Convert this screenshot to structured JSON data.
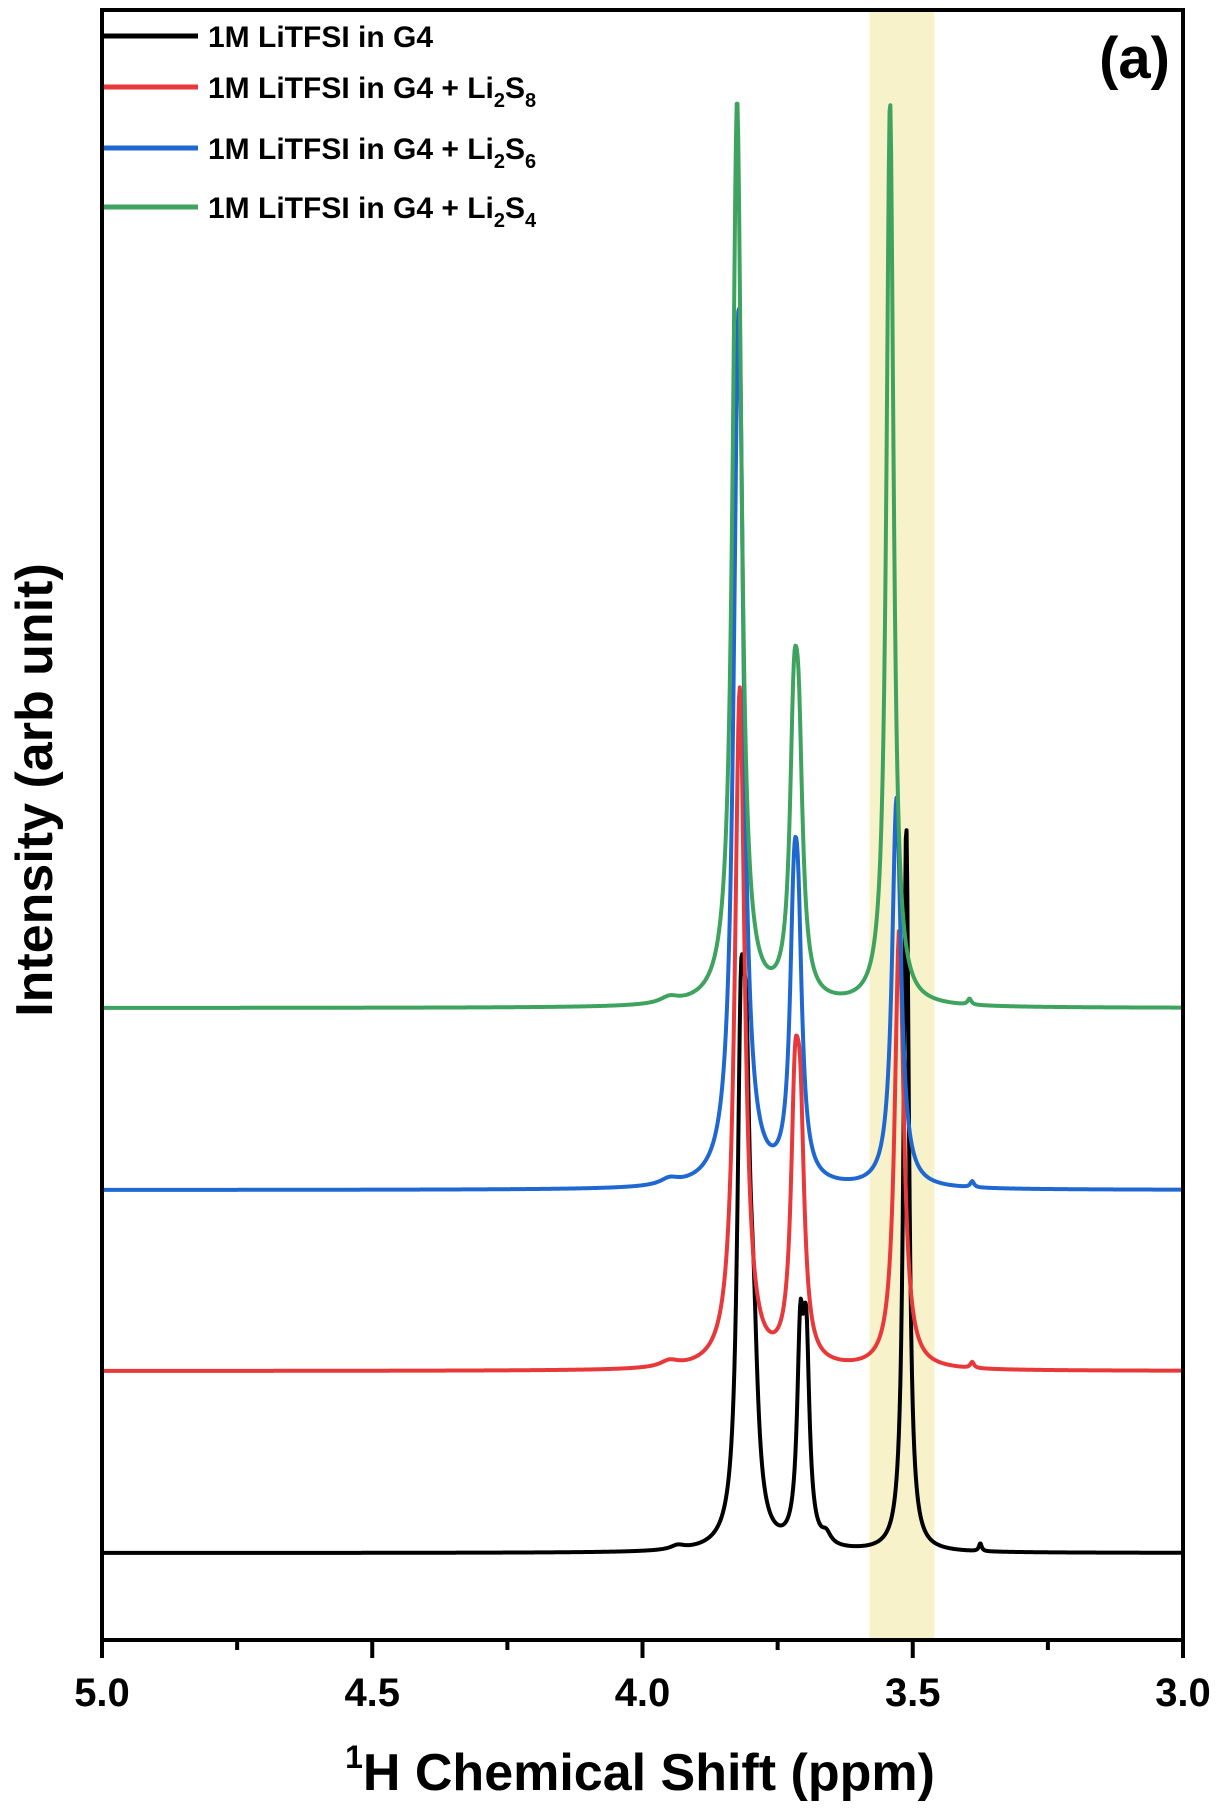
{
  "chart_data": {
    "type": "line",
    "panel_label": "(a)",
    "xlabel": {
      "superscript": "1",
      "text": "H Chemical Shift (ppm)"
    },
    "ylabel": "Intensity (arb unit)",
    "xlim": [
      5.0,
      3.0
    ],
    "x_reversed": true,
    "x_ticks": [
      5.0,
      4.5,
      4.0,
      3.5,
      3.0
    ],
    "x_tick_labels": [
      "5.0",
      "4.5",
      "4.0",
      "3.5",
      "3.0"
    ],
    "y_ticks_shown": false,
    "highlight_band": {
      "x": [
        3.58,
        3.46
      ],
      "color": "#f7f2c9"
    },
    "legend_placement": "top-left",
    "series": [
      {
        "name": "1M LiTFSI in G4",
        "legend": {
          "main": "1M LiTFSI in G4",
          "sub1": "",
          "mid": "",
          "sub2": ""
        },
        "color": "#000000",
        "offset": 0,
        "peaks": [
          {
            "x": 3.818,
            "height": 428,
            "width": 0.008
          },
          {
            "x": 3.808,
            "height": 330,
            "width": 0.008
          },
          {
            "x": 3.795,
            "height": 160,
            "width": 0.01
          },
          {
            "x": 3.708,
            "height": 190,
            "width": 0.007
          },
          {
            "x": 3.697,
            "height": 185,
            "width": 0.007
          },
          {
            "x": 3.512,
            "height": 728,
            "width": 0.006
          },
          {
            "x": 3.935,
            "height": 4,
            "width": 0.015
          },
          {
            "x": 3.66,
            "height": 10,
            "width": 0.01
          },
          {
            "x": 3.375,
            "height": 8,
            "width": 0.003
          }
        ]
      },
      {
        "name": "1M LiTFSI in G4 + Li2S8",
        "legend": {
          "main": "1M LiTFSI in G4 + Li",
          "sub1": "2",
          "mid": "S",
          "sub2": "8"
        },
        "color": "#e8383a",
        "offset": 182,
        "peaks": [
          {
            "x": 3.82,
            "height": 680,
            "width": 0.011
          },
          {
            "x": 3.718,
            "height": 225,
            "width": 0.009
          },
          {
            "x": 3.708,
            "height": 200,
            "width": 0.009
          },
          {
            "x": 3.525,
            "height": 440,
            "width": 0.01
          },
          {
            "x": 3.95,
            "height": 6,
            "width": 0.02
          },
          {
            "x": 3.39,
            "height": 6,
            "width": 0.004
          }
        ]
      },
      {
        "name": "1M LiTFSI in G4 + Li2S6",
        "legend": {
          "main": "1M LiTFSI in G4 + Li",
          "sub1": "2",
          "mid": "S",
          "sub2": "6"
        },
        "color": "#1f68d2",
        "offset": 363,
        "peaks": [
          {
            "x": 3.822,
            "height": 880,
            "width": 0.011
          },
          {
            "x": 3.72,
            "height": 215,
            "width": 0.009
          },
          {
            "x": 3.712,
            "height": 195,
            "width": 0.009
          },
          {
            "x": 3.53,
            "height": 390,
            "width": 0.01
          },
          {
            "x": 3.95,
            "height": 6,
            "width": 0.02
          },
          {
            "x": 3.39,
            "height": 6,
            "width": 0.004
          }
        ]
      },
      {
        "name": "1M LiTFSI in G4 + Li2S4",
        "legend": {
          "main": "1M LiTFSI in G4 + Li",
          "sub1": "2",
          "mid": "S",
          "sub2": "4"
        },
        "color": "#3ea35e",
        "offset": 545,
        "peaks": [
          {
            "x": 3.825,
            "height": 905,
            "width": 0.01
          },
          {
            "x": 3.72,
            "height": 232,
            "width": 0.009
          },
          {
            "x": 3.711,
            "height": 208,
            "width": 0.009
          },
          {
            "x": 3.542,
            "height": 905,
            "width": 0.008
          },
          {
            "x": 3.95,
            "height": 6,
            "width": 0.02
          },
          {
            "x": 3.395,
            "height": 6,
            "width": 0.004
          }
        ]
      }
    ]
  }
}
